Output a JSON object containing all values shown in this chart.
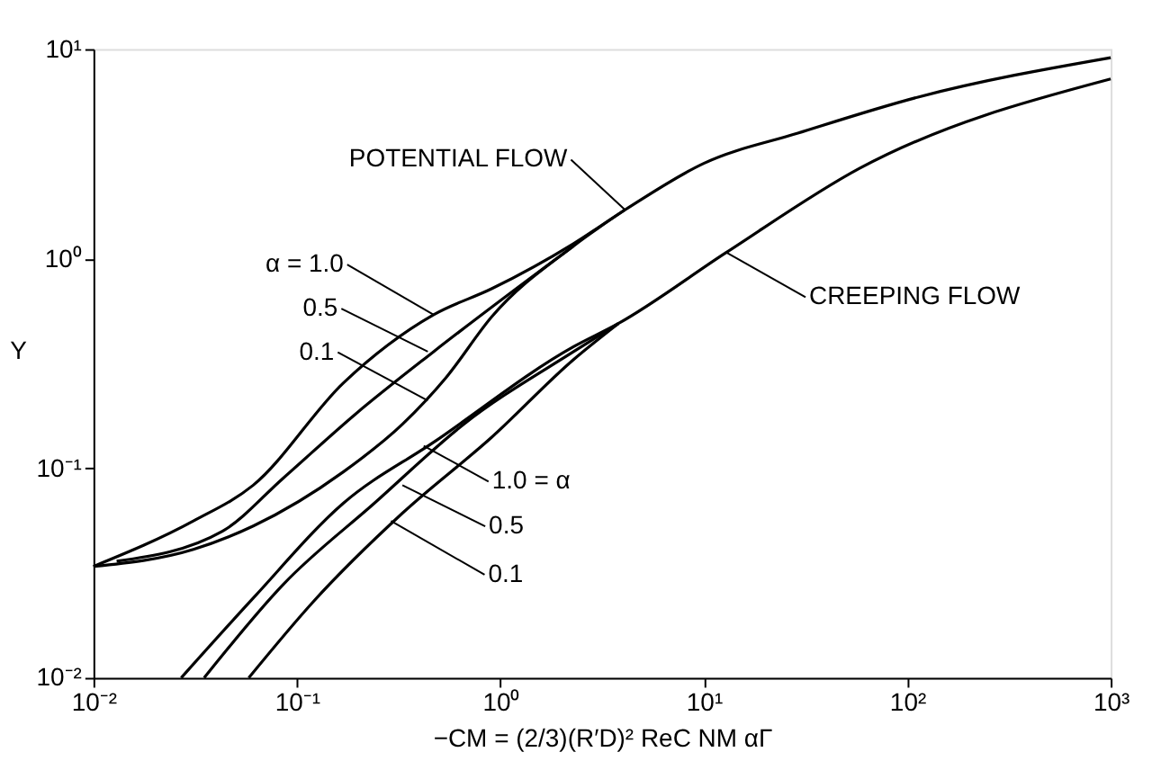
{
  "chart_data": {
    "type": "line",
    "xlabel": "−CM = (2/3)(R′D)² ReC NM αΓ",
    "ylabel": "Y",
    "log": "xy",
    "xlim": [
      0.01,
      1000
    ],
    "ylim": [
      0.01,
      10
    ],
    "xticks": [
      {
        "value": 0.01,
        "label": "10⁻²"
      },
      {
        "value": 0.1,
        "label": "10⁻¹"
      },
      {
        "value": 1,
        "label": "10⁰"
      },
      {
        "value": 10,
        "label": "10¹"
      },
      {
        "value": 100,
        "label": "10²"
      },
      {
        "value": 1000,
        "label": "10³"
      }
    ],
    "yticks": [
      {
        "value": 0.01,
        "label": "10⁻²"
      },
      {
        "value": 0.1,
        "label": "10⁻¹"
      },
      {
        "value": 1,
        "label": "10⁰"
      },
      {
        "value": 10,
        "label": "10¹"
      }
    ],
    "grid": false,
    "series": [
      {
        "color": "#000000",
        "x": [
          0.01,
          0.031,
          0.061,
          0.169,
          0.47,
          0.91,
          2.29,
          4.1,
          10,
          29,
          113,
          1000
        ],
        "values": [
          0.034,
          0.056,
          0.083,
          0.255,
          0.54,
          0.72,
          1.18,
          1.71,
          2.85,
          3.97,
          5.9,
          9.1
        ]
      },
      {
        "color": "#000000",
        "x": [
          0.013,
          0.043,
          0.086,
          0.195,
          0.47,
          2.29
        ],
        "values": [
          0.036,
          0.05,
          0.09,
          0.182,
          0.36,
          1.15
        ]
      },
      {
        "color": "#000000",
        "x": [
          0.01,
          0.031,
          0.061,
          0.169,
          0.33,
          0.54,
          0.91,
          2.29,
          4.1
        ],
        "values": [
          0.034,
          0.041,
          0.053,
          0.096,
          0.162,
          0.27,
          0.53,
          1.15,
          1.71
        ]
      },
      {
        "color": "#000000",
        "x": [
          0.027,
          0.061,
          0.169,
          0.47,
          2.29,
          3.8,
          12.9,
          58,
          1000
        ],
        "values": [
          0.01,
          0.024,
          0.068,
          0.133,
          0.38,
          0.49,
          1.07,
          2.69,
          7.2
        ]
      },
      {
        "color": "#000000",
        "x": [
          0.035,
          0.086,
          0.24,
          0.66,
          2.29,
          3.8
        ],
        "values": [
          0.01,
          0.028,
          0.068,
          0.162,
          0.36,
          0.49
        ]
      },
      {
        "color": "#000000",
        "x": [
          0.058,
          0.12,
          0.33,
          0.91,
          2.29,
          3.8
        ],
        "values": [
          0.01,
          0.023,
          0.061,
          0.141,
          0.33,
          0.49
        ]
      }
    ],
    "annotations": [
      {
        "text": "POTENTIAL FLOW",
        "x": 4.1,
        "y": 1.71
      },
      {
        "text": "CREEPING FLOW",
        "x": 12.9,
        "y": 1.07
      },
      {
        "text": "α = 1.0",
        "x": 0.47,
        "y": 0.54
      },
      {
        "text": "0.5",
        "x": 0.44,
        "y": 0.36
      },
      {
        "text": "0.1",
        "x": 0.44,
        "y": 0.21
      },
      {
        "text": "1.0 = α",
        "x": 0.42,
        "y": 0.128
      },
      {
        "text": "0.5",
        "x": 0.33,
        "y": 0.083
      },
      {
        "text": "0.1",
        "x": 0.29,
        "y": 0.056
      }
    ]
  }
}
